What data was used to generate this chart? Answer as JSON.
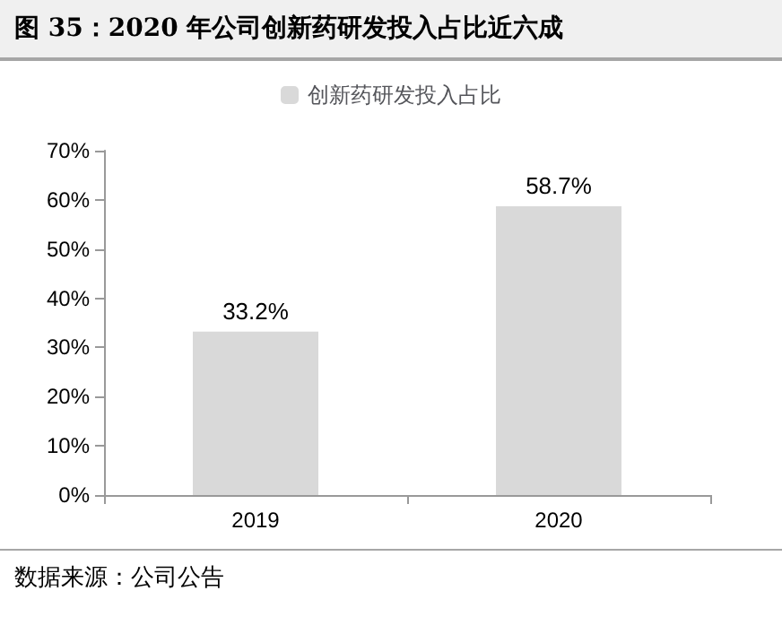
{
  "chart_data": {
    "type": "bar",
    "title": "图 35：2020 年公司创新药研发投入占比近六成",
    "categories": [
      "2019",
      "2020"
    ],
    "series": [
      {
        "name": "创新药研发投入占比",
        "color": "#d9d9d9",
        "values": [
          33.2,
          58.7
        ],
        "value_labels": [
          "33.2%",
          "58.7%"
        ]
      }
    ],
    "ylim": [
      0,
      70
    ],
    "yticks": [
      {
        "value": 0,
        "label": "0%"
      },
      {
        "value": 10,
        "label": "10%"
      },
      {
        "value": 20,
        "label": "20%"
      },
      {
        "value": 30,
        "label": "30%"
      },
      {
        "value": 40,
        "label": "40%"
      },
      {
        "value": 50,
        "label": "50%"
      },
      {
        "value": 60,
        "label": "60%"
      },
      {
        "value": 70,
        "label": "70%"
      }
    ],
    "grid": false,
    "legend": "top",
    "annotations": [
      "数据来源：公司公告"
    ]
  }
}
